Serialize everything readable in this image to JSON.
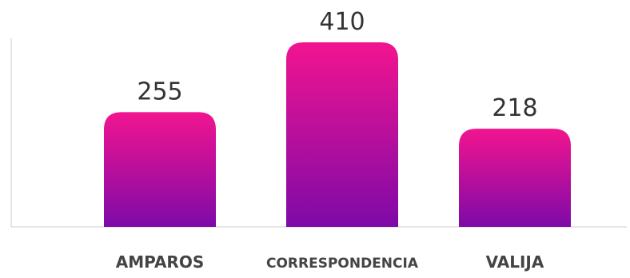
{
  "chart_data": {
    "type": "bar",
    "categories": [
      "AMPAROS",
      "CORRESPONDENCIA",
      "VALIJA"
    ],
    "values": [
      255,
      410,
      218
    ],
    "title": "",
    "xlabel": "",
    "ylabel": "",
    "ylim": [
      0,
      410
    ],
    "grid": false,
    "legend": "none",
    "data_labels": true,
    "colors": {
      "bar_top": "#f2148f",
      "bar_bottom": "#7e0aa8",
      "axis": "#dddddd",
      "label_text": "#333333"
    }
  }
}
